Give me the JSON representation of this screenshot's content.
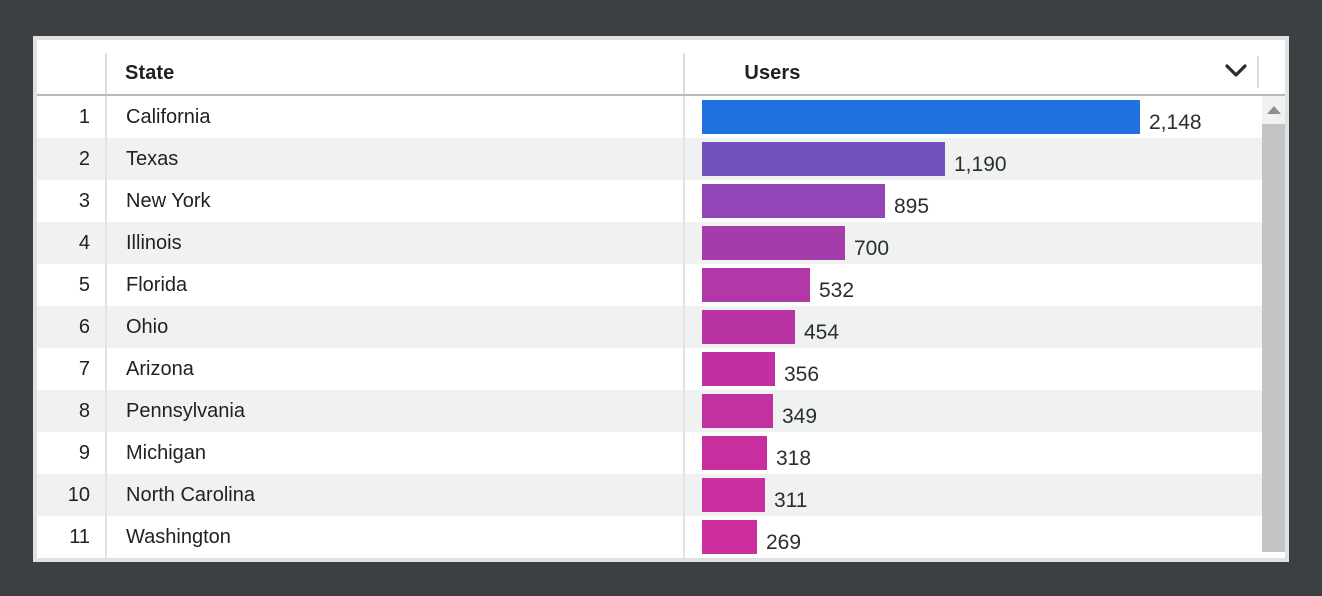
{
  "window": {
    "background_color": "#3c4043",
    "card_border_color": "#dfe1e3"
  },
  "table": {
    "columns": {
      "rank": "",
      "state": "State",
      "users": "Users"
    },
    "sort_icon": "chevron-down",
    "max_users": 2148,
    "rows": [
      {
        "rank": "1",
        "state": "California",
        "users": 2148,
        "users_label": "2,148",
        "bar_color": "#1f72e0"
      },
      {
        "rank": "2",
        "state": "Texas",
        "users": 1190,
        "users_label": "1,190",
        "bar_color": "#7351bd"
      },
      {
        "rank": "3",
        "state": "New York",
        "users": 895,
        "users_label": "895",
        "bar_color": "#9245b6"
      },
      {
        "rank": "4",
        "state": "Illinois",
        "users": 700,
        "users_label": "700",
        "bar_color": "#a43cab"
      },
      {
        "rank": "5",
        "state": "Florida",
        "users": 532,
        "users_label": "532",
        "bar_color": "#b138a6"
      },
      {
        "rank": "6",
        "state": "Ohio",
        "users": 454,
        "users_label": "454",
        "bar_color": "#ba33a3"
      },
      {
        "rank": "7",
        "state": "Arizona",
        "users": 356,
        "users_label": "356",
        "bar_color": "#c130a1"
      },
      {
        "rank": "8",
        "state": "Pennsylvania",
        "users": 349,
        "users_label": "349",
        "bar_color": "#c3309f"
      },
      {
        "rank": "9",
        "state": "Michigan",
        "users": 318,
        "users_label": "318",
        "bar_color": "#c72f9f"
      },
      {
        "rank": "10",
        "state": "North Carolina",
        "users": 311,
        "users_label": "311",
        "bar_color": "#c92f9e"
      },
      {
        "rank": "11",
        "state": "Washington",
        "users": 269,
        "users_label": "269",
        "bar_color": "#cc2e9d"
      }
    ],
    "row_alt_color": "#f0f2f2",
    "divider_color": "#dadce0"
  },
  "scrollbar": {
    "up_button": "up-arrow",
    "thumb_color": "#c2c4c6",
    "track_color": "#f1f1f1"
  },
  "chart_data": {
    "type": "bar",
    "orientation": "horizontal",
    "categories": [
      "California",
      "Texas",
      "New York",
      "Illinois",
      "Florida",
      "Ohio",
      "Arizona",
      "Pennsylvania",
      "Michigan",
      "North Carolina",
      "Washington"
    ],
    "values": [
      2148,
      1190,
      895,
      700,
      532,
      454,
      356,
      349,
      318,
      311,
      269
    ],
    "title": "",
    "xlabel": "Users",
    "ylabel": "State",
    "xlim": [
      0,
      2148
    ],
    "grid": false,
    "legend_position": "none",
    "bar_colors": [
      "#1f72e0",
      "#7351bd",
      "#9245b6",
      "#a43cab",
      "#b138a6",
      "#ba33a3",
      "#c130a1",
      "#c3309f",
      "#c72f9f",
      "#c92f9e",
      "#cc2e9d"
    ]
  }
}
